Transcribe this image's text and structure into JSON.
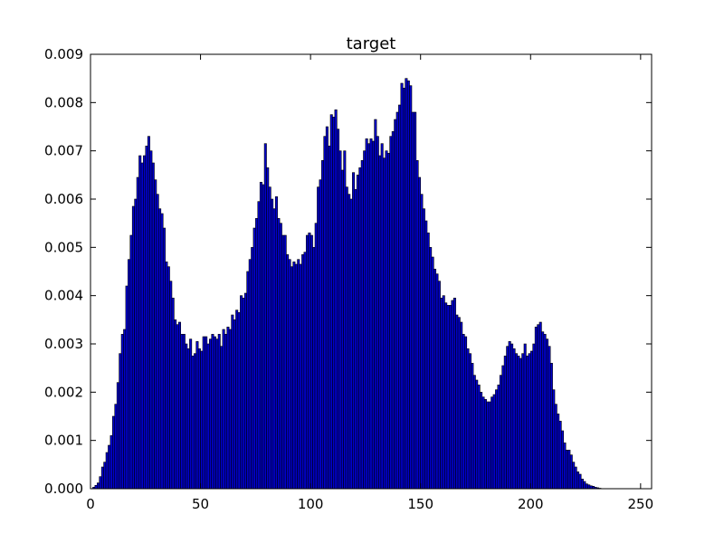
{
  "chart_data": {
    "type": "bar",
    "title": "target",
    "xlabel": "",
    "ylabel": "",
    "xlim": [
      0,
      255
    ],
    "ylim": [
      0,
      0.009
    ],
    "grid": false,
    "bar_color": "#0000cc",
    "bar_edge_color": "#000000",
    "x_ticks": [
      "0",
      "50",
      "100",
      "150",
      "200",
      "250"
    ],
    "y_ticks": [
      "0.000",
      "0.001",
      "0.002",
      "0.003",
      "0.004",
      "0.005",
      "0.006",
      "0.007",
      "0.008",
      "0.009"
    ],
    "bin_start": 0,
    "bin_width": 1,
    "values": [
      0.0,
      3e-05,
      7e-05,
      0.00012,
      0.00025,
      0.00045,
      0.00055,
      0.00075,
      0.0009,
      0.0011,
      0.0015,
      0.00175,
      0.0022,
      0.0028,
      0.0032,
      0.0033,
      0.0042,
      0.00475,
      0.00525,
      0.00585,
      0.006,
      0.00645,
      0.0069,
      0.00675,
      0.0069,
      0.0071,
      0.0073,
      0.007,
      0.00675,
      0.0064,
      0.0061,
      0.0058,
      0.0057,
      0.0054,
      0.0047,
      0.0046,
      0.0043,
      0.00395,
      0.0035,
      0.0034,
      0.00345,
      0.0032,
      0.0032,
      0.003,
      0.0029,
      0.0031,
      0.00275,
      0.0028,
      0.00305,
      0.0029,
      0.00285,
      0.00315,
      0.00315,
      0.003,
      0.0031,
      0.0032,
      0.00315,
      0.0031,
      0.0032,
      0.00295,
      0.0033,
      0.0032,
      0.00335,
      0.0033,
      0.0036,
      0.0035,
      0.0037,
      0.00365,
      0.004,
      0.00395,
      0.00405,
      0.0045,
      0.00475,
      0.005,
      0.0054,
      0.0056,
      0.00595,
      0.00635,
      0.0063,
      0.00715,
      0.00665,
      0.00625,
      0.006,
      0.0058,
      0.00605,
      0.0056,
      0.0055,
      0.00525,
      0.00525,
      0.00485,
      0.00475,
      0.0046,
      0.0047,
      0.00465,
      0.00475,
      0.00465,
      0.00485,
      0.0049,
      0.00525,
      0.0053,
      0.00525,
      0.005,
      0.0055,
      0.00625,
      0.0064,
      0.0068,
      0.0073,
      0.0075,
      0.0071,
      0.00775,
      0.0077,
      0.00785,
      0.00745,
      0.007,
      0.0066,
      0.007,
      0.00625,
      0.0061,
      0.006,
      0.00655,
      0.0062,
      0.0065,
      0.00665,
      0.0068,
      0.007,
      0.00725,
      0.00715,
      0.00725,
      0.0072,
      0.00765,
      0.0073,
      0.0069,
      0.00715,
      0.00685,
      0.007,
      0.00695,
      0.0073,
      0.0074,
      0.00765,
      0.0078,
      0.00795,
      0.0084,
      0.0083,
      0.0085,
      0.00845,
      0.00835,
      0.0078,
      0.0078,
      0.0068,
      0.00645,
      0.0061,
      0.0058,
      0.00555,
      0.0053,
      0.005,
      0.0048,
      0.00455,
      0.00445,
      0.0043,
      0.00395,
      0.004,
      0.00385,
      0.0038,
      0.0038,
      0.0039,
      0.00395,
      0.0036,
      0.00355,
      0.00345,
      0.0032,
      0.00315,
      0.0029,
      0.0028,
      0.0026,
      0.00235,
      0.00225,
      0.00215,
      0.002,
      0.0019,
      0.00185,
      0.0018,
      0.0018,
      0.0019,
      0.00195,
      0.00205,
      0.00215,
      0.00235,
      0.00255,
      0.00275,
      0.00295,
      0.00305,
      0.003,
      0.0029,
      0.0028,
      0.00275,
      0.0027,
      0.0028,
      0.003,
      0.00275,
      0.0028,
      0.00285,
      0.003,
      0.00335,
      0.0034,
      0.00345,
      0.00325,
      0.0032,
      0.0031,
      0.00295,
      0.0026,
      0.00205,
      0.00175,
      0.00155,
      0.0014,
      0.0012,
      0.00095,
      0.0008,
      0.0008,
      0.0007,
      0.00055,
      0.00045,
      0.00035,
      0.0003,
      0.0002,
      0.00015,
      0.0001,
      8e-05,
      6e-05,
      5e-05,
      3e-05,
      2e-05,
      1e-05,
      0.0,
      0.0,
      0.0,
      0.0,
      0.0,
      0.0,
      0.0,
      0.0,
      0.0,
      0.0,
      0.0,
      0.0,
      0.0,
      0.0,
      0.0,
      0.0,
      0.0,
      0.0,
      0.0,
      0.0,
      0.0,
      0.0,
      0.0
    ]
  }
}
